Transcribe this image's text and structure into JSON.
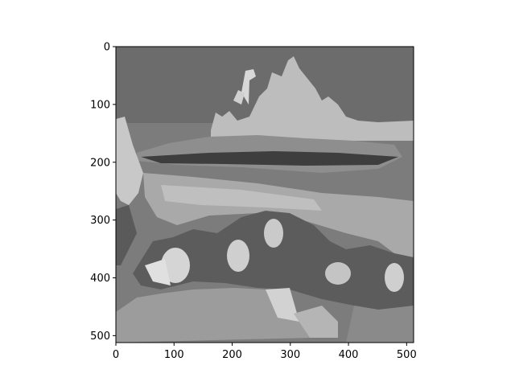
{
  "chart_data": {
    "type": "heatmap",
    "title": "",
    "xlabel": "",
    "ylabel": "",
    "colormap": "gray",
    "xlim": [
      0,
      512
    ],
    "ylim": [
      512,
      0
    ],
    "x_ticks": [
      0,
      100,
      200,
      300,
      400,
      500
    ],
    "y_ticks": [
      0,
      100,
      200,
      300,
      400,
      500
    ],
    "x_tick_labels": [
      "0",
      "100",
      "200",
      "300",
      "400",
      "500"
    ],
    "y_tick_labels": [
      "0",
      "100",
      "200",
      "300",
      "400",
      "500"
    ],
    "axis_color": "#000000",
    "image_description": "grayscale abstract landscape-like image"
  }
}
